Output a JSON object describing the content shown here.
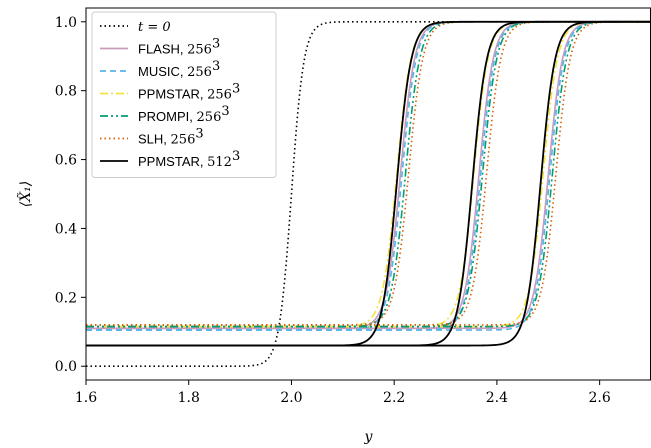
{
  "chart_data": {
    "type": "line",
    "xlabel": "y",
    "ylabel": "⟨X̃₁⟩",
    "xlim": [
      1.6,
      2.7
    ],
    "ylim": [
      -0.04,
      1.04
    ],
    "xticks": [
      "1.6",
      "1.8",
      "2.0",
      "2.2",
      "2.4",
      "2.6"
    ],
    "yticks": [
      "0.0",
      "0.2",
      "0.4",
      "0.6",
      "0.8",
      "1.0"
    ],
    "legend_position": "top-left",
    "grid": false,
    "initial": {
      "name": "t = 0",
      "color": "#000000",
      "style": "dotted",
      "center": 2.0,
      "width": 0.012,
      "baseline": 0.0
    },
    "series": [
      {
        "name": "FLASH",
        "res": "256",
        "color": "#c89bbd",
        "style": "solid",
        "width": 0.014,
        "baseline": 0.11,
        "centers": [
          2.212,
          2.365,
          2.5
        ]
      },
      {
        "name": "MUSIC",
        "res": "256",
        "color": "#56b4e9",
        "style": "dashed",
        "width": 0.014,
        "baseline": 0.105,
        "centers": [
          2.215,
          2.368,
          2.503
        ]
      },
      {
        "name": "PPMSTAR",
        "res": "256",
        "color": "#f0e442",
        "style": "dashdot",
        "width": 0.014,
        "baseline": 0.115,
        "centers": [
          2.205,
          2.355,
          2.49
        ]
      },
      {
        "name": "PROMPI",
        "res": "256",
        "color": "#009e73",
        "style": "dashdotdot",
        "width": 0.014,
        "baseline": 0.115,
        "centers": [
          2.222,
          2.372,
          2.508
        ]
      },
      {
        "name": "SLH",
        "res": "256",
        "color": "#d55e00",
        "style": "dotted",
        "width": 0.014,
        "baseline": 0.12,
        "centers": [
          2.228,
          2.38,
          2.515
        ]
      },
      {
        "name": "PPMSTAR",
        "res": "512",
        "color": "#000000",
        "style": "solid",
        "width": 0.014,
        "baseline": 0.06,
        "centers": [
          2.205,
          2.352,
          2.485
        ]
      }
    ]
  }
}
